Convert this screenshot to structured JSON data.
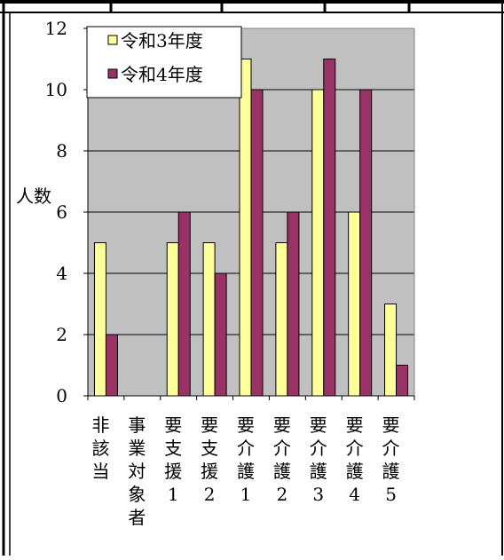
{
  "chart_data": {
    "type": "bar",
    "title": "",
    "xlabel": "",
    "ylabel": "人数",
    "ylim": [
      0,
      12
    ],
    "yticks": [
      0,
      2,
      4,
      6,
      8,
      10,
      12
    ],
    "grid": true,
    "legend_position": "top-left",
    "categories": [
      "非該当",
      "事業対象者",
      "要支援1",
      "要支援2",
      "要介護1",
      "要介護2",
      "要介護3",
      "要介護4",
      "要介護5"
    ],
    "series": [
      {
        "name": "令和3年度",
        "color": "#ffff99",
        "values": [
          5,
          0,
          5,
          5,
          11,
          5,
          10,
          6,
          3
        ]
      },
      {
        "name": "令和4年度",
        "color": "#993366",
        "values": [
          2,
          0,
          6,
          4,
          10,
          6,
          11,
          10,
          1
        ]
      }
    ],
    "plot_background": "#c0c0c0"
  }
}
